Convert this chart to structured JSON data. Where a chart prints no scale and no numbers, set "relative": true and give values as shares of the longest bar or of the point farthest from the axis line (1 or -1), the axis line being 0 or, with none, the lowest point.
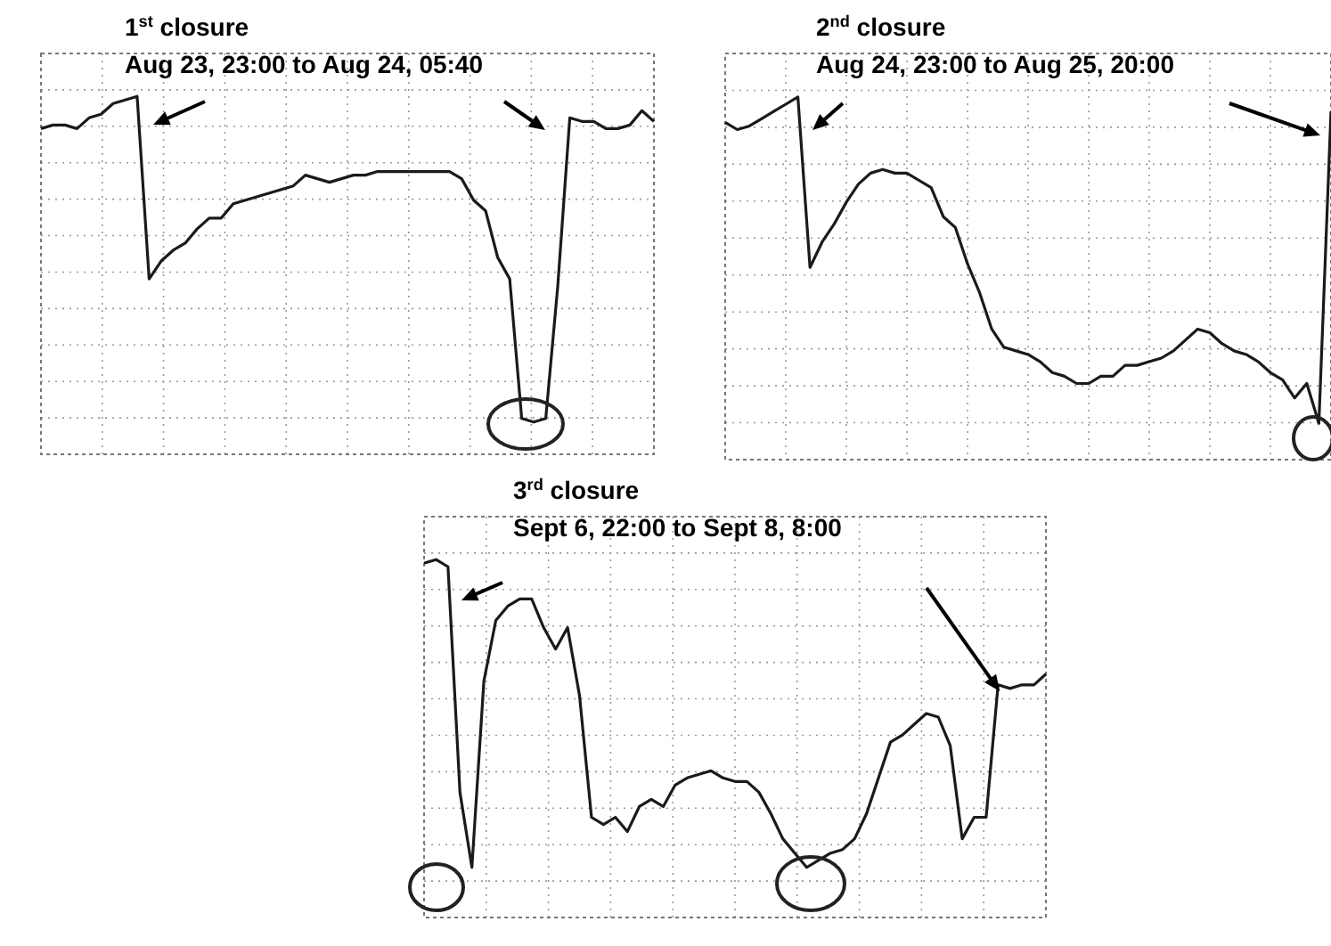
{
  "chart_data": [
    {
      "type": "line",
      "title": "1$^{st}$ closure",
      "subtitle": "Aug 23, 23:00 to Aug 24, 05:40",
      "relative": true,
      "grid": true,
      "marker": "none",
      "line_style": "solid",
      "categories": [
        null,
        null,
        null,
        null,
        null,
        null,
        null,
        null,
        null,
        null,
        null,
        null,
        null,
        null,
        null,
        null,
        null,
        null,
        null,
        null,
        null,
        null,
        null,
        null,
        null,
        null,
        null,
        null,
        null,
        null,
        null,
        null,
        null,
        null,
        null,
        null,
        null,
        null,
        null,
        null,
        null,
        null,
        null,
        null,
        null,
        null,
        null,
        null,
        null,
        null,
        null,
        null
      ],
      "series": [
        {
          "color": "#1a1a1a",
          "values": [
            0.91,
            0.92,
            0.92,
            0.91,
            0.94,
            0.95,
            0.98,
            0.99,
            1.0,
            0.49,
            0.54,
            0.57,
            0.59,
            0.63,
            0.66,
            0.66,
            0.7,
            0.71,
            0.72,
            0.73,
            0.74,
            0.75,
            0.78,
            0.77,
            0.76,
            0.77,
            0.78,
            0.78,
            0.79,
            0.79,
            0.79,
            0.79,
            0.79,
            0.79,
            0.79,
            0.77,
            0.71,
            0.68,
            0.55,
            0.49,
            0.1,
            0.09,
            0.1,
            0.47,
            0.94,
            0.93,
            0.93,
            0.91,
            0.91,
            0.92,
            0.96,
            0.93
          ]
        }
      ]
    },
    {
      "type": "line",
      "title": "2$^{nd}$ closure",
      "subtitle": "Aug 24, 23:00 to Aug 25, 20:00",
      "relative": true,
      "grid": true,
      "marker": "none",
      "line_style": "solid",
      "categories": [
        null,
        null,
        null,
        null,
        null,
        null,
        null,
        null,
        null,
        null,
        null,
        null,
        null,
        null,
        null,
        null,
        null,
        null,
        null,
        null,
        null,
        null,
        null,
        null,
        null,
        null,
        null,
        null,
        null,
        null,
        null,
        null,
        null,
        null,
        null,
        null,
        null,
        null,
        null,
        null,
        null,
        null,
        null,
        null,
        null,
        null,
        null,
        null,
        null,
        null,
        null
      ],
      "series": [
        {
          "color": "#1a1a1a",
          "values": [
            0.93,
            0.91,
            0.92,
            0.94,
            0.96,
            0.98,
            1.0,
            0.53,
            0.6,
            0.65,
            0.71,
            0.76,
            0.79,
            0.8,
            0.79,
            0.79,
            0.77,
            0.75,
            0.67,
            0.64,
            0.54,
            0.46,
            0.36,
            0.31,
            0.3,
            0.29,
            0.27,
            0.24,
            0.23,
            0.21,
            0.21,
            0.23,
            0.23,
            0.26,
            0.26,
            0.27,
            0.28,
            0.3,
            0.33,
            0.36,
            0.35,
            0.32,
            0.3,
            0.29,
            0.27,
            0.24,
            0.22,
            0.17,
            0.21,
            0.1,
            0.96
          ]
        }
      ]
    },
    {
      "type": "line",
      "title": "3$^{rd}$ closure",
      "subtitle": "Sept 6, 22:00 to Sept 8, 8:00",
      "relative": true,
      "grid": true,
      "marker": "none",
      "line_style": "solid",
      "categories": [
        null,
        null,
        null,
        null,
        null,
        null,
        null,
        null,
        null,
        null,
        null,
        null,
        null,
        null,
        null,
        null,
        null,
        null,
        null,
        null,
        null,
        null,
        null,
        null,
        null,
        null,
        null,
        null,
        null,
        null,
        null,
        null,
        null,
        null,
        null,
        null,
        null,
        null,
        null,
        null,
        null,
        null,
        null,
        null,
        null,
        null,
        null,
        null,
        null,
        null,
        null,
        null,
        null
      ],
      "series": [
        {
          "color": "#1a1a1a",
          "values": [
            0.99,
            1.0,
            0.98,
            0.35,
            0.14,
            0.66,
            0.83,
            0.87,
            0.89,
            0.89,
            0.81,
            0.75,
            0.81,
            0.62,
            0.28,
            0.26,
            0.28,
            0.24,
            0.31,
            0.33,
            0.31,
            0.37,
            0.39,
            0.4,
            0.41,
            0.39,
            0.38,
            0.38,
            0.35,
            0.29,
            0.22,
            0.18,
            0.14,
            0.16,
            0.18,
            0.19,
            0.22,
            0.29,
            0.39,
            0.49,
            0.51,
            0.54,
            0.57,
            0.56,
            0.48,
            0.22,
            0.28,
            0.28,
            0.65,
            0.64,
            0.65,
            0.65,
            0.68
          ]
        }
      ]
    }
  ]
}
